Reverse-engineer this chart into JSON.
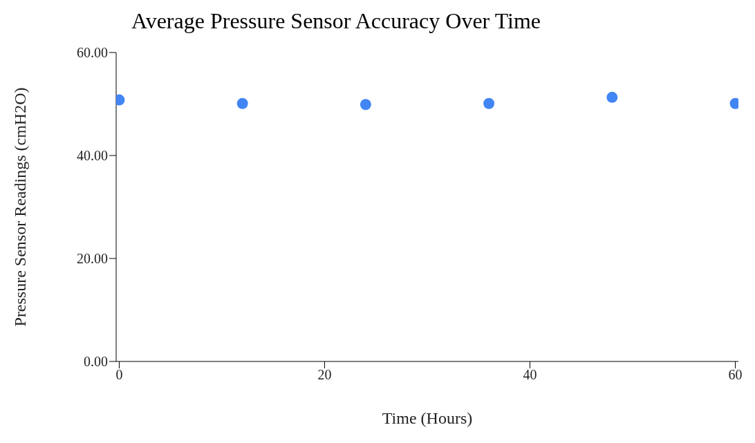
{
  "chart_data": {
    "type": "scatter",
    "title": "Average Pressure Sensor Accuracy Over Time",
    "xlabel": "Time (Hours)",
    "ylabel": "Pressure Sensor Readings (cmH2O)",
    "x": [
      0,
      12,
      24,
      36,
      48,
      60
    ],
    "series": [
      {
        "color": "#4285f4",
        "values": [
          50.8,
          50.1,
          49.9,
          50.1,
          51.3,
          50.1
        ]
      }
    ],
    "xlim": [
      -0.3,
      60.3
    ],
    "xticks": [
      0,
      20,
      40,
      60
    ],
    "ylim": [
      0,
      60
    ],
    "yticks": [
      {
        "value": 0,
        "label": "0.00"
      },
      {
        "value": 20,
        "label": "20.00"
      },
      {
        "value": 40,
        "label": "40.00"
      },
      {
        "value": 60,
        "label": "60.00"
      }
    ],
    "marker": "circle",
    "grid": false
  }
}
